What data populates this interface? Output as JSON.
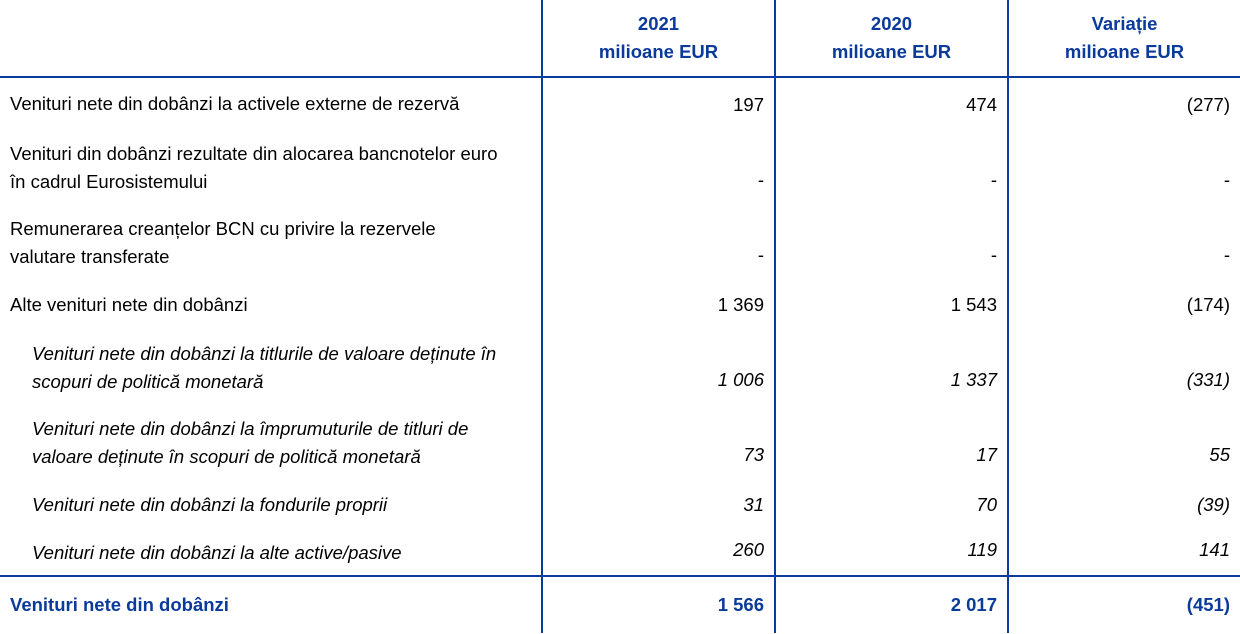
{
  "headers": [
    {
      "line1": "",
      "line2": ""
    },
    {
      "line1": "2021",
      "line2": "milioane EUR"
    },
    {
      "line1": "2020",
      "line2": "milioane EUR"
    },
    {
      "line1": "Variație",
      "line2": "milioane EUR"
    }
  ],
  "rows": [
    {
      "label": "Venituri nete din dobânzi la activele externe de rezervă",
      "v2021": "197",
      "v2020": "474",
      "change": "(277)",
      "italic": false
    },
    {
      "label": "Venituri din dobânzi rezultate din alocarea bancnotelor euro în cadrul Eurosistemului",
      "v2021": "-",
      "v2020": "-",
      "change": "-",
      "italic": false
    },
    {
      "label": "Remunerarea creanțelor BCN cu privire la rezervele valutare transferate",
      "v2021": "-",
      "v2020": "-",
      "change": "-",
      "italic": false
    },
    {
      "label": "Alte venituri nete din dobânzi",
      "v2021": "1 369",
      "v2020": "1 543",
      "change": "(174)",
      "italic": false
    },
    {
      "label": "Venituri nete din dobânzi la titlurile de valoare deținute în scopuri de politică monetară",
      "v2021": "1 006",
      "v2020": "1 337",
      "change": "(331)",
      "italic": true
    },
    {
      "label": "Venituri nete din dobânzi la împrumuturile de titluri de valoare deținute în scopuri de politică monetară",
      "v2021": "73",
      "v2020": "17",
      "change": "55",
      "italic": true
    },
    {
      "label": "Venituri nete din dobânzi la fondurile proprii",
      "v2021": "31",
      "v2020": "70",
      "change": "(39)",
      "italic": true
    },
    {
      "label": "Venituri nete din dobânzi la alte active/pasive",
      "v2021": "260",
      "v2020": "119",
      "change": "141",
      "italic": true
    }
  ],
  "total": {
    "label": "Venituri nete din dobânzi",
    "v2021": "1 566",
    "v2020": "2 017",
    "change": "(451)"
  },
  "colors": {
    "accent": "#0a3a9a"
  }
}
